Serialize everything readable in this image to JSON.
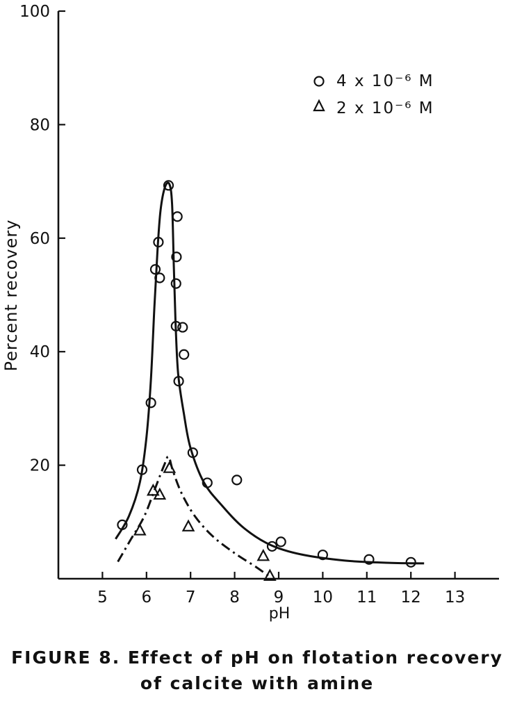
{
  "chart_data": {
    "type": "scatter",
    "xlabel": "pH",
    "ylabel": "Percent recovery",
    "xlim": [
      4,
      14
    ],
    "ylim": [
      0,
      100
    ],
    "x_ticks": [
      5,
      6,
      7,
      8,
      9,
      10,
      11,
      12,
      13
    ],
    "y_ticks": [
      20,
      40,
      60,
      80,
      100
    ],
    "grid": false,
    "legend_position": "top-right",
    "series": [
      {
        "name": "4 x 10⁻⁶ M",
        "marker": "circle",
        "line": "solid",
        "points": [
          [
            5.45,
            9.5
          ],
          [
            5.9,
            19.2
          ],
          [
            6.1,
            31.0
          ],
          [
            6.2,
            54.5
          ],
          [
            6.27,
            59.3
          ],
          [
            6.3,
            53.0
          ],
          [
            6.5,
            69.3
          ],
          [
            6.7,
            63.8
          ],
          [
            6.68,
            56.7
          ],
          [
            6.67,
            52.0
          ],
          [
            6.67,
            44.5
          ],
          [
            6.82,
            44.3
          ],
          [
            6.85,
            39.5
          ],
          [
            6.73,
            34.8
          ],
          [
            7.05,
            22.2
          ],
          [
            7.38,
            16.9
          ],
          [
            8.05,
            17.4
          ],
          [
            8.85,
            5.7
          ],
          [
            9.05,
            6.5
          ],
          [
            10.0,
            4.2
          ],
          [
            11.05,
            3.4
          ],
          [
            12.0,
            2.9
          ]
        ],
        "curve": [
          [
            5.3,
            7
          ],
          [
            5.6,
            11
          ],
          [
            5.85,
            17
          ],
          [
            6.0,
            25
          ],
          [
            6.1,
            35
          ],
          [
            6.18,
            48
          ],
          [
            6.25,
            58
          ],
          [
            6.32,
            65
          ],
          [
            6.42,
            69
          ],
          [
            6.52,
            69.5
          ],
          [
            6.58,
            66
          ],
          [
            6.62,
            55
          ],
          [
            6.66,
            45
          ],
          [
            6.72,
            36
          ],
          [
            6.85,
            29
          ],
          [
            7.0,
            23
          ],
          [
            7.3,
            17
          ],
          [
            7.7,
            13
          ],
          [
            8.2,
            9
          ],
          [
            8.8,
            6
          ],
          [
            9.5,
            4.3
          ],
          [
            10.5,
            3.2
          ],
          [
            11.5,
            2.8
          ],
          [
            12.3,
            2.7
          ]
        ]
      },
      {
        "name": "2 x 10⁻⁶ M",
        "marker": "triangle",
        "line": "dash-dot",
        "points": [
          [
            5.85,
            8.5
          ],
          [
            6.15,
            15.5
          ],
          [
            6.3,
            14.8
          ],
          [
            6.52,
            19.5
          ],
          [
            6.95,
            9.2
          ],
          [
            8.65,
            4.0
          ],
          [
            8.8,
            0.5
          ]
        ],
        "curve": [
          [
            5.35,
            3
          ],
          [
            5.65,
            7
          ],
          [
            5.95,
            11
          ],
          [
            6.2,
            16
          ],
          [
            6.4,
            20
          ],
          [
            6.5,
            21.5
          ],
          [
            6.6,
            19
          ],
          [
            6.8,
            15
          ],
          [
            7.1,
            11
          ],
          [
            7.5,
            7.5
          ],
          [
            8.0,
            4.5
          ],
          [
            8.5,
            2
          ],
          [
            8.8,
            0.3
          ]
        ]
      }
    ]
  },
  "caption": {
    "line1": "FIGURE 8. Effect of pH on flotation recovery",
    "line2": "of calcite with amine"
  }
}
